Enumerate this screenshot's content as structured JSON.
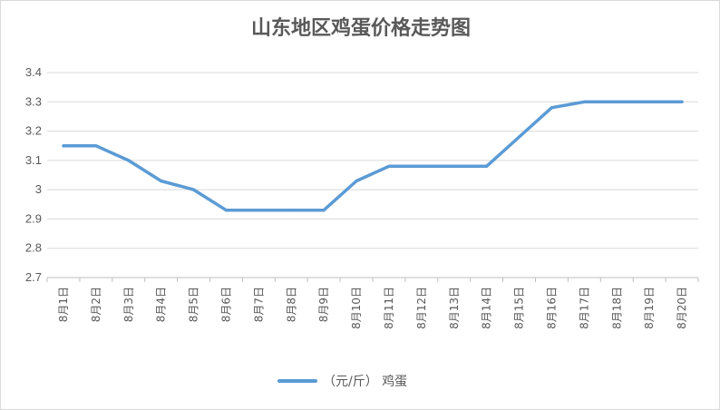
{
  "chart_data": {
    "type": "line",
    "title": "山东地区鸡蛋价格走势图",
    "categories": [
      "8月1日",
      "8月2日",
      "8月3日",
      "8月4日",
      "8月5日",
      "8月6日",
      "8月7日",
      "8月8日",
      "8月9日",
      "8月10日",
      "8月11日",
      "8月12日",
      "8月13日",
      "8月14日",
      "8月15日",
      "8月16日",
      "8月17日",
      "8月18日",
      "8月19日",
      "8月20日"
    ],
    "series": [
      {
        "name": "（元/斤） 鸡蛋",
        "color": "#5b9bd5",
        "values": [
          3.15,
          3.15,
          3.1,
          3.03,
          3.0,
          2.93,
          2.93,
          2.93,
          2.93,
          3.03,
          3.08,
          3.08,
          3.08,
          3.08,
          3.18,
          3.28,
          3.3,
          3.3,
          3.3,
          3.3
        ]
      }
    ],
    "y_ticks": [
      "2.7",
      "2.8",
      "2.9",
      "3",
      "3.1",
      "3.2",
      "3.3",
      "3.4"
    ],
    "ylim": [
      2.7,
      3.4
    ],
    "grid": true,
    "legend_position": "bottom"
  }
}
